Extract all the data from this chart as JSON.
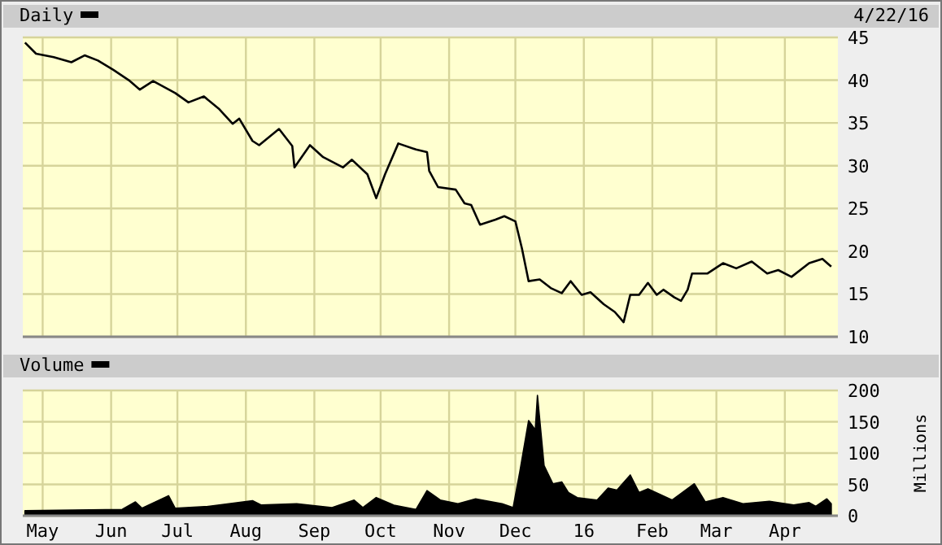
{
  "chart_data": [
    {
      "type": "line",
      "legend": "top left",
      "annotations": [
        "4/22/16"
      ],
      "xlim": [
        "2015-04-22",
        "2016-04-25"
      ],
      "ylim": [
        10,
        45
      ],
      "yticks": [
        10,
        15,
        20,
        25,
        30,
        35,
        40,
        45
      ],
      "xticks": [
        {
          "value": "2015-05-01",
          "label": null
        },
        {
          "value": "2015-06-01",
          "label": null
        },
        {
          "value": "2015-07-01",
          "label": null
        },
        {
          "value": "2015-08-01",
          "label": null
        },
        {
          "value": "2015-09-01",
          "label": null
        },
        {
          "value": "2015-10-01",
          "label": null
        },
        {
          "value": "2015-11-01",
          "label": null
        },
        {
          "value": "2015-12-01",
          "label": null
        },
        {
          "value": "2016-01-01",
          "label": null
        },
        {
          "value": "2016-02-01",
          "label": null
        },
        {
          "value": "2016-03-01",
          "label": null
        },
        {
          "value": "2016-04-01",
          "label": null
        }
      ],
      "tick_labels": "y",
      "grid": true,
      "series": [
        {
          "name": "Daily",
          "color": "#000000",
          "x": [
            "2015-04-23",
            "2015-04-28",
            "2015-05-06",
            "2015-05-14",
            "2015-05-20",
            "2015-05-26",
            "2015-06-02",
            "2015-06-09",
            "2015-06-14",
            "2015-06-20",
            "2015-06-30",
            "2015-07-06",
            "2015-07-13",
            "2015-07-20",
            "2015-07-26",
            "2015-07-29",
            "2015-08-04",
            "2015-08-07",
            "2015-08-16",
            "2015-08-22",
            "2015-08-23",
            "2015-08-30",
            "2015-09-05",
            "2015-09-14",
            "2015-09-18",
            "2015-09-25",
            "2015-09-29",
            "2015-10-03",
            "2015-10-09",
            "2015-10-17",
            "2015-10-22",
            "2015-10-23",
            "2015-10-27",
            "2015-11-04",
            "2015-11-08",
            "2015-11-11",
            "2015-11-15",
            "2015-11-22",
            "2015-11-26",
            "2015-12-01",
            "2015-12-04",
            "2015-12-07",
            "2015-12-12",
            "2015-12-17",
            "2015-12-22",
            "2015-12-26",
            "2015-12-31",
            "2016-01-04",
            "2016-01-10",
            "2016-01-15",
            "2016-01-19",
            "2016-01-22",
            "2016-01-26",
            "2016-01-30",
            "2016-02-03",
            "2016-02-06",
            "2016-02-11",
            "2016-02-14",
            "2016-02-17",
            "2016-02-19",
            "2016-02-26",
            "2016-03-04",
            "2016-03-10",
            "2016-03-17",
            "2016-03-24",
            "2016-03-29",
            "2016-04-04",
            "2016-04-12",
            "2016-04-18",
            "2016-04-22"
          ],
          "values": [
            44.4,
            43.1,
            42.7,
            42.1,
            42.9,
            42.3,
            41.2,
            40.0,
            38.9,
            39.9,
            38.5,
            37.4,
            38.1,
            36.6,
            34.9,
            35.5,
            32.9,
            32.4,
            34.3,
            32.3,
            29.8,
            32.4,
            31.0,
            29.8,
            30.7,
            29.0,
            26.2,
            29.0,
            32.6,
            31.9,
            31.6,
            29.4,
            27.5,
            27.2,
            25.6,
            25.4,
            23.1,
            23.7,
            24.1,
            23.5,
            20.3,
            16.5,
            16.7,
            15.7,
            15.1,
            16.5,
            14.9,
            15.2,
            13.8,
            12.9,
            11.7,
            14.9,
            14.9,
            16.3,
            14.9,
            15.5,
            14.6,
            14.2,
            15.5,
            17.4,
            17.4,
            18.6,
            18.0,
            18.8,
            17.4,
            17.8,
            17.0,
            18.6,
            19.1,
            18.2
          ]
        }
      ]
    },
    {
      "type": "area",
      "legend": "top left",
      "ylabel": "Millions",
      "xlim": [
        "2015-04-22",
        "2016-04-25"
      ],
      "ylim": [
        0,
        200
      ],
      "yticks": [
        0,
        50,
        100,
        150,
        200
      ],
      "xticks": [
        {
          "value": "2015-05-01",
          "label": "May"
        },
        {
          "value": "2015-06-01",
          "label": "Jun"
        },
        {
          "value": "2015-07-01",
          "label": "Jul"
        },
        {
          "value": "2015-08-01",
          "label": "Aug"
        },
        {
          "value": "2015-09-01",
          "label": "Sep"
        },
        {
          "value": "2015-10-01",
          "label": "Oct"
        },
        {
          "value": "2015-11-01",
          "label": "Nov"
        },
        {
          "value": "2015-12-01",
          "label": "Dec"
        },
        {
          "value": "2016-01-01",
          "label": "16"
        },
        {
          "value": "2016-02-01",
          "label": "Feb"
        },
        {
          "value": "2016-03-01",
          "label": "Mar"
        },
        {
          "value": "2016-04-01",
          "label": "Apr"
        }
      ],
      "grid": true,
      "series": [
        {
          "name": "Volume",
          "color": "#000000",
          "x": [
            "2015-04-23",
            "2015-06-06",
            "2015-06-12",
            "2015-06-15",
            "2015-06-27",
            "2015-06-30",
            "2015-07-15",
            "2015-08-04",
            "2015-08-08",
            "2015-08-24",
            "2015-09-09",
            "2015-09-19",
            "2015-09-23",
            "2015-09-29",
            "2015-10-07",
            "2015-10-17",
            "2015-10-22",
            "2015-10-28",
            "2015-11-05",
            "2015-11-13",
            "2015-11-25",
            "2015-11-30",
            "2015-12-03",
            "2015-12-07",
            "2015-12-10",
            "2015-12-11",
            "2015-12-14",
            "2015-12-18",
            "2015-12-22",
            "2015-12-25",
            "2015-12-29",
            "2016-01-07",
            "2016-01-12",
            "2016-01-16",
            "2016-01-22",
            "2016-01-26",
            "2016-01-30",
            "2016-02-10",
            "2016-02-20",
            "2016-02-25",
            "2016-03-04",
            "2016-03-13",
            "2016-03-25",
            "2016-04-05",
            "2016-04-12",
            "2016-04-15",
            "2016-04-20",
            "2016-04-22"
          ],
          "values": [
            8,
            10,
            22,
            12,
            32,
            12,
            15,
            24,
            17,
            19,
            13,
            25,
            13,
            29,
            17,
            10,
            40,
            25,
            19,
            27,
            19,
            13,
            70,
            152,
            137,
            192,
            80,
            51,
            54,
            37,
            29,
            25,
            44,
            41,
            65,
            37,
            43,
            25,
            51,
            22,
            29,
            19,
            23,
            17,
            21,
            15,
            27,
            19
          ]
        }
      ]
    }
  ]
}
